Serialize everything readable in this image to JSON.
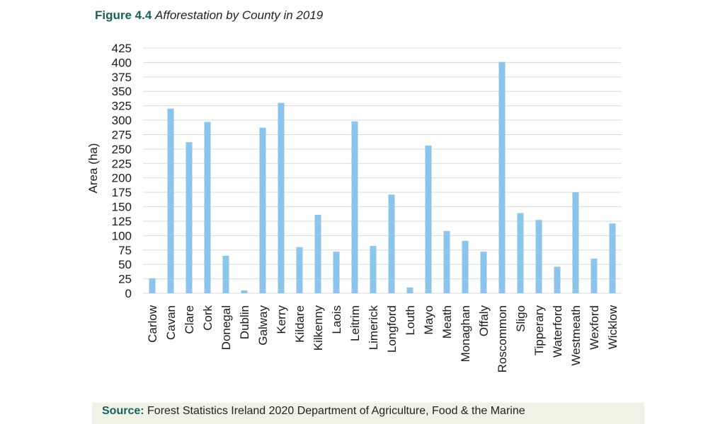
{
  "figure": {
    "label": "Figure 4.4",
    "title": "Afforestation by County in 2019"
  },
  "source": {
    "label": "Source:",
    "text": "Forest Statistics Ireland 2020 Department of Agriculture, Food & the Marine"
  },
  "colors": {
    "bar": "#8cc5ec",
    "grid": "#d9d9d9",
    "accent": "#17605e",
    "source_bg": "#eef3e6"
  },
  "chart_data": {
    "type": "bar",
    "title": "Afforestation by County in 2019",
    "xlabel": "",
    "ylabel": "Area (ha)",
    "ylim": [
      0,
      425
    ],
    "yticks": [
      0,
      25,
      50,
      75,
      100,
      125,
      150,
      175,
      200,
      225,
      250,
      275,
      300,
      325,
      350,
      375,
      400,
      425
    ],
    "grid": true,
    "categories": [
      "Carlow",
      "Cavan",
      "Clare",
      "Cork",
      "Donegal",
      "Dublin",
      "Galway",
      "Kerry",
      "Kildare",
      "Kilkenny",
      "Laois",
      "Leitrim",
      "Limerick",
      "Longford",
      "Louth",
      "Mayo",
      "Meath",
      "Monaghan",
      "Offaly",
      "Roscommon",
      "Sligo",
      "Tipperary",
      "Waterford",
      "Westmeath",
      "Wexford",
      "Wicklow"
    ],
    "values": [
      26,
      320,
      262,
      297,
      65,
      5,
      287,
      330,
      80,
      136,
      72,
      298,
      82,
      171,
      10,
      256,
      108,
      91,
      72,
      401,
      139,
      127,
      46,
      175,
      60,
      121
    ]
  }
}
